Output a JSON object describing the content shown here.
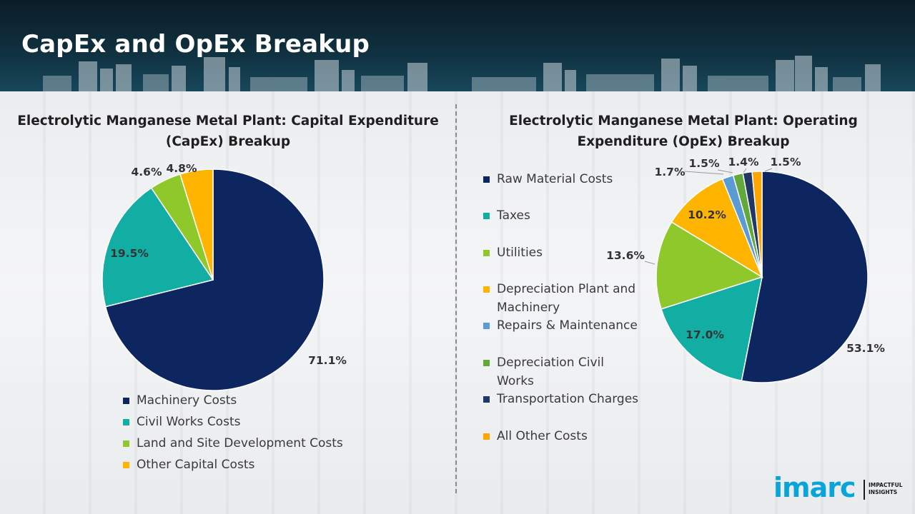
{
  "header": {
    "title": "CapEx and OpEx Breakup"
  },
  "colors": {
    "header_bg": "#103241",
    "navy": "#0d2660",
    "teal": "#12ada3",
    "lime": "#8fc82a",
    "amber": "#ffb400",
    "blue": "#5b9bd5",
    "green": "#62a83a",
    "darknavy": "#1f3864",
    "orange": "#ffa500"
  },
  "chart_data": [
    {
      "type": "pie",
      "title": "Electrolytic Manganese Metal Plant: Capital Expenditure (CapEx) Breakup",
      "categories": [
        "Machinery Costs",
        "Civil Works Costs",
        "Land and Site Development Costs",
        "Other Capital Costs"
      ],
      "values": [
        71.1,
        19.5,
        4.6,
        4.8
      ],
      "labels": [
        "71.1%",
        "19.5%",
        "4.6%",
        "4.8%"
      ],
      "colors": [
        "#0d2660",
        "#12ada3",
        "#8fc82a",
        "#ffb400"
      ],
      "legend": "bottom"
    },
    {
      "type": "pie",
      "title": "Electrolytic Manganese Metal Plant: Operating Expenditure (OpEx) Breakup",
      "categories": [
        "Raw Material Costs",
        "Taxes",
        "Utilities",
        "Depreciation Plant and Machinery",
        "Repairs & Maintenance",
        "Depreciation Civil Works",
        "Transportation Charges",
        "All Other Costs"
      ],
      "values": [
        53.1,
        17.0,
        13.6,
        10.2,
        1.7,
        1.5,
        1.4,
        1.5
      ],
      "labels": [
        "53.1%",
        "17.0%",
        "13.6%",
        "10.2%",
        "1.7%",
        "1.5%",
        "1.4%",
        "1.5%"
      ],
      "colors": [
        "#0d2660",
        "#12ada3",
        "#8fc82a",
        "#ffb400",
        "#5b9bd5",
        "#62a83a",
        "#1f3864",
        "#ffa500"
      ],
      "legend": "left"
    }
  ],
  "logo": {
    "word": "imarc",
    "tagline": "IMPACTFUL INSIGHTS"
  }
}
